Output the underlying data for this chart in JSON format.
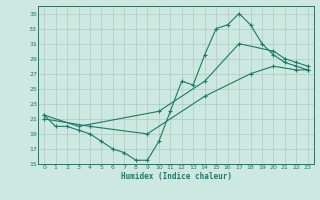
{
  "xlabel": "Humidex (Indice chaleur)",
  "bg_color": "#cce8e0",
  "grid_color": "#aaccbb",
  "line_color": "#1a7a6a",
  "xlim": [
    -0.5,
    23.5
  ],
  "ylim": [
    15,
    36
  ],
  "yticks": [
    15,
    17,
    19,
    21,
    23,
    25,
    27,
    29,
    31,
    33,
    35
  ],
  "xticks": [
    0,
    1,
    2,
    3,
    4,
    5,
    6,
    7,
    8,
    9,
    10,
    11,
    12,
    13,
    14,
    15,
    16,
    17,
    18,
    19,
    20,
    21,
    22,
    23
  ],
  "series1": [
    [
      0,
      21.5
    ],
    [
      1,
      20
    ],
    [
      2,
      20
    ],
    [
      3,
      19.5
    ],
    [
      4,
      19
    ],
    [
      5,
      18
    ],
    [
      6,
      17
    ],
    [
      7,
      16.5
    ],
    [
      8,
      15.5
    ],
    [
      9,
      15.5
    ],
    [
      10,
      18
    ],
    [
      11,
      22
    ],
    [
      12,
      26
    ],
    [
      13,
      25.5
    ],
    [
      14,
      29.5
    ],
    [
      15,
      33
    ],
    [
      16,
      33.5
    ],
    [
      17,
      35
    ],
    [
      18,
      33.5
    ],
    [
      19,
      31
    ],
    [
      20,
      29.5
    ],
    [
      21,
      28.5
    ],
    [
      22,
      28
    ],
    [
      23,
      27.5
    ]
  ],
  "series2": [
    [
      0,
      21.5
    ],
    [
      3,
      20
    ],
    [
      10,
      22
    ],
    [
      14,
      26
    ],
    [
      17,
      31
    ],
    [
      20,
      30
    ],
    [
      21,
      29
    ],
    [
      22,
      28.5
    ],
    [
      23,
      28
    ]
  ],
  "series3": [
    [
      0,
      21
    ],
    [
      4,
      20
    ],
    [
      9,
      19
    ],
    [
      14,
      24
    ],
    [
      18,
      27
    ],
    [
      20,
      28
    ],
    [
      22,
      27.5
    ],
    [
      23,
      27.5
    ]
  ]
}
